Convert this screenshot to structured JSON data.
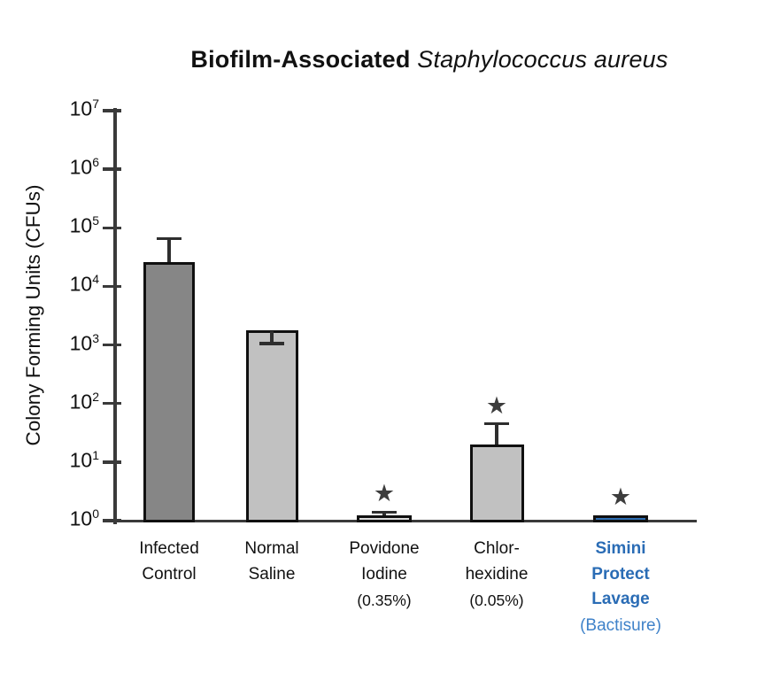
{
  "title": {
    "bold": "Biofilm-Associated",
    "italic": " Staphylococcus aureus"
  },
  "chart_data": {
    "type": "bar",
    "y_scale": "log10",
    "title": "Biofilm-Associated Staphylococcus aureus",
    "ylabel": "Colony Forming Units (CFUs)",
    "ylim": [
      1,
      10000000
    ],
    "y_ticks": [
      {
        "base": "10",
        "exp": "0"
      },
      {
        "base": "10",
        "exp": "1"
      },
      {
        "base": "10",
        "exp": "2"
      },
      {
        "base": "10",
        "exp": "3"
      },
      {
        "base": "10",
        "exp": "4"
      },
      {
        "base": "10",
        "exp": "5"
      },
      {
        "base": "10",
        "exp": "6"
      },
      {
        "base": "10",
        "exp": "7"
      }
    ],
    "axis_color": "#3a3a3a",
    "significance_marker": {
      "symbol": "★",
      "color": "#3d3d3d"
    },
    "categories": [
      {
        "id": "infected-control",
        "lines": [
          "Infected",
          "Control"
        ],
        "sub": null,
        "label_color": "#111111",
        "sub_color": null,
        "label_bold": false,
        "value": 26000,
        "error_high": 65000,
        "error_low": null,
        "bar_fill": "#868686",
        "significant": false
      },
      {
        "id": "normal-saline",
        "lines": [
          "Normal",
          "Saline"
        ],
        "sub": null,
        "label_color": "#111111",
        "sub_color": null,
        "label_bold": false,
        "value": 1800,
        "error_high": null,
        "error_low": 1050,
        "bar_fill": "#c1c1c1",
        "significant": false
      },
      {
        "id": "povidone-iodine",
        "lines": [
          "Povidone",
          "Iodine"
        ],
        "sub": "(0.35%)",
        "label_color": "#111111",
        "sub_color": "#111111",
        "label_bold": false,
        "value": 1.25,
        "error_high": 1.4,
        "error_low": null,
        "bar_fill": "#dcdcdc",
        "significant": true
      },
      {
        "id": "chlorhexidine",
        "lines": [
          "Chlor-",
          "hexidine"
        ],
        "sub": "(0.05%)",
        "label_color": "#111111",
        "sub_color": "#111111",
        "label_bold": false,
        "value": 20,
        "error_high": 45,
        "error_low": null,
        "bar_fill": "#c1c1c1",
        "significant": true
      },
      {
        "id": "simini-protect-lavage",
        "lines": [
          "Simini",
          "Protect",
          "Lavage"
        ],
        "sub": "(Bactisure)",
        "label_color": "#2a6cb5",
        "sub_color": "#3f82c9",
        "label_bold": true,
        "value": 1.25,
        "error_high": null,
        "error_low": null,
        "bar_fill": "#2f6fb4",
        "significant": true
      }
    ]
  }
}
